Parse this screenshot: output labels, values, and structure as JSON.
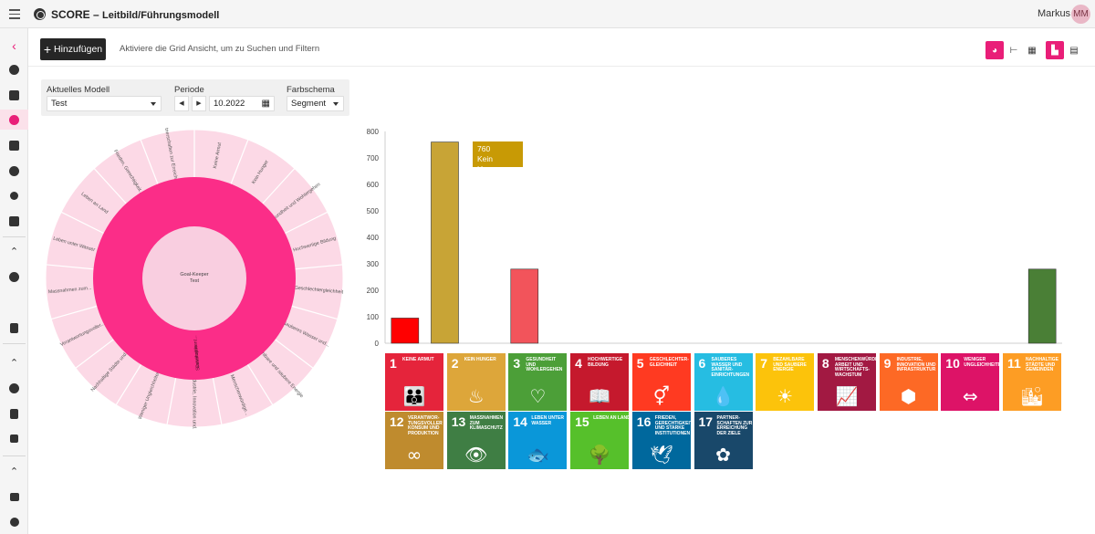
{
  "header": {
    "app_name": "SCORE",
    "separator": " – ",
    "page": "Leitbild/Führungsmodell",
    "user_name": "Markus",
    "avatar_initials": "MM"
  },
  "sidebar": {
    "collapse_icon": "chevron-left-icon",
    "accent": "#e91e78"
  },
  "toolbar": {
    "add_label": "Hinzufügen",
    "hint": "Aktiviere die Grid Ansicht, um zu Suchen und Filtern"
  },
  "filters": {
    "model_label": "Aktuelles Modell",
    "model_value": "Test",
    "period_label": "Periode",
    "period_value": "10.2022",
    "scheme_label": "Farbschema",
    "scheme_value": "Segment"
  },
  "donut": {
    "center_line1": "Goal-Keeper",
    "center_line2": "Test",
    "middle_line1": "Sustainable",
    "middle_line2": "Development...",
    "outer_labels": [
      "Keine Armut",
      "Kein Hunger",
      "Gesundheit und Wohlergehen",
      "Hochwertige Bildung",
      "Geschlechtergleichheit",
      "Sauberes Wasser und...",
      "Bezahlbare und saubere Energie",
      "Menschenwürdige...",
      "Industrie, Innovation und...",
      "Weniger Ungleichheiten",
      "Nachhaltige Städte und...",
      "Verantwortungsvoller...",
      "Massnahmen zum...",
      "Leben unter Wasser",
      "Leben an Land",
      "Frieden, Gerechtigkeit...",
      "Partnerschaften zur Erreichung..."
    ]
  },
  "chart_data": {
    "type": "bar",
    "categories": [
      "1",
      "2",
      "3",
      "4",
      "5",
      "6",
      "7",
      "8",
      "9",
      "10",
      "11",
      "12",
      "13",
      "14",
      "15",
      "16",
      "17"
    ],
    "values": [
      95,
      760,
      0,
      280,
      0,
      0,
      0,
      0,
      0,
      0,
      0,
      0,
      0,
      0,
      0,
      0,
      280
    ],
    "bar_colors": [
      "#ff0000",
      "#c8a436",
      "#4c9f38",
      "#f2545b",
      "#ff3a21",
      "#26bde2",
      "#fcc30b",
      "#a21942",
      "#fd6925",
      "#dd1367",
      "#fd9d24",
      "#bf8b2e",
      "#3f7e44",
      "#0a97d9",
      "#56c02b",
      "#00689d",
      "#4a7f36"
    ],
    "ylim": [
      0,
      800
    ],
    "yticks": [
      0,
      100,
      200,
      300,
      400,
      500,
      600,
      700,
      800
    ],
    "tooltip": {
      "value": "760",
      "label": "Kein Hunger"
    }
  },
  "sdg_tiles": [
    {
      "num": "1",
      "text": "Keine Armut",
      "color": "#e5243b",
      "icon": "people-icon",
      "glyph": "👪"
    },
    {
      "num": "2",
      "text": "Kein Hunger",
      "color": "#dda63a",
      "icon": "bowl-icon",
      "glyph": "♨"
    },
    {
      "num": "3",
      "text": "Gesundheit und Wohlergehen",
      "color": "#4c9f38",
      "icon": "heartbeat-icon",
      "glyph": "♡"
    },
    {
      "num": "4",
      "text": "Hochwertige Bildung",
      "color": "#c5192d",
      "icon": "book-icon",
      "glyph": "📖"
    },
    {
      "num": "5",
      "text": "Geschlechter-gleichheit",
      "color": "#ff3a21",
      "icon": "gender-icon",
      "glyph": "⚥"
    },
    {
      "num": "6",
      "text": "Sauberes Wasser und Sanitär-einrichtungen",
      "color": "#26bde2",
      "icon": "water-icon",
      "glyph": "💧"
    },
    {
      "num": "7",
      "text": "Bezahlbare und saubere Energie",
      "color": "#fcc30b",
      "icon": "sun-icon",
      "glyph": "☀"
    },
    {
      "num": "8",
      "text": "Menschenwürdige Arbeit und Wirtschafts-wachstum",
      "color": "#a21942",
      "icon": "growth-chart-icon",
      "glyph": "📈"
    },
    {
      "num": "9",
      "text": "Industrie, Innovation und Infrastruktur",
      "color": "#fd6925",
      "icon": "cubes-icon",
      "glyph": "⬢"
    },
    {
      "num": "10",
      "text": "Weniger Ungleichheiten",
      "color": "#dd1367",
      "icon": "equality-icon",
      "glyph": "⇔"
    },
    {
      "num": "11",
      "text": "Nachhaltige Städte und Gemeinden",
      "color": "#fd9d24",
      "icon": "city-icon",
      "glyph": "🏙"
    },
    {
      "num": "12",
      "text": "Verantwor-tungsvoller Konsum und Produktion",
      "color": "#bf8b2e",
      "icon": "infinity-icon",
      "glyph": "∞"
    },
    {
      "num": "13",
      "text": "Massnahmen zum Klimaschutz",
      "color": "#3f7e44",
      "icon": "eye-globe-icon",
      "glyph": "👁"
    },
    {
      "num": "14",
      "text": "Leben unter Wasser",
      "color": "#0a97d9",
      "icon": "fish-icon",
      "glyph": "🐟"
    },
    {
      "num": "15",
      "text": "Leben an Land",
      "color": "#56c02b",
      "icon": "tree-icon",
      "glyph": "🌳"
    },
    {
      "num": "16",
      "text": "Frieden, Gerechtigkeit und starke Institutionen",
      "color": "#00689d",
      "icon": "dove-icon",
      "glyph": "🕊"
    },
    {
      "num": "17",
      "text": "Partner-schaften zur Erreichung der Ziele",
      "color": "#19486a",
      "icon": "flower-icon",
      "glyph": "✿"
    }
  ]
}
